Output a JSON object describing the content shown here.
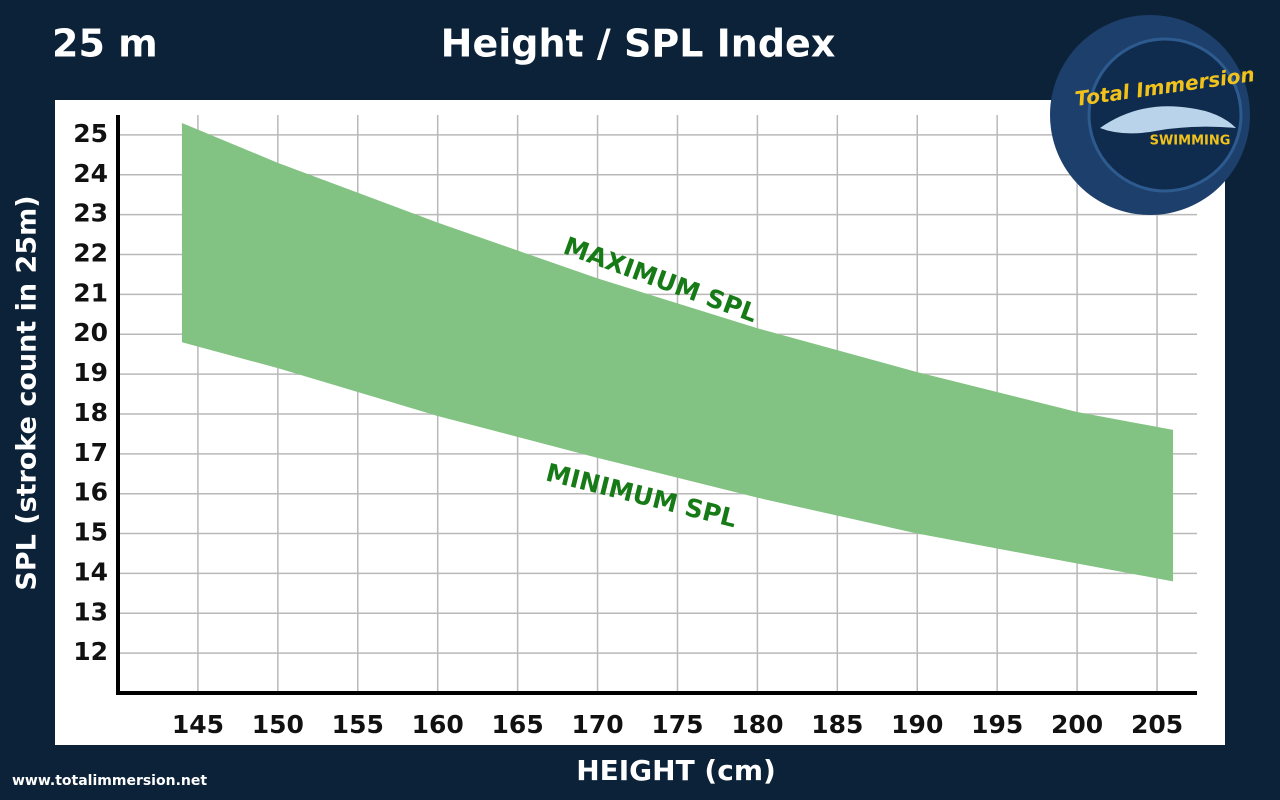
{
  "chart_data": {
    "type": "band",
    "corner_label": "25 m",
    "title": "Height / SPL Index",
    "x_label": "HEIGHT (cm)",
    "y_label": "SPL (stroke count in 25m)",
    "footer": "www.totalimmersion.net",
    "logo": {
      "title": "Total Immersion",
      "subtitle": "SWIMMING"
    },
    "x": [
      144,
      150,
      160,
      170,
      180,
      190,
      200,
      206
    ],
    "series": [
      {
        "name": "MAXIMUM SPL",
        "color": "#82c282",
        "values": [
          25.3,
          24.3,
          22.8,
          21.4,
          20.15,
          19.05,
          18.05,
          17.6
        ]
      },
      {
        "name": "MINIMUM SPL",
        "color": "#82c282",
        "values": [
          19.8,
          19.15,
          17.95,
          16.9,
          15.9,
          15.0,
          14.25,
          13.8
        ]
      }
    ],
    "label_color": "#167a16",
    "xlim": [
      140,
      207.5
    ],
    "ylim": [
      11,
      25.5
    ],
    "xticks": [
      145,
      150,
      155,
      160,
      165,
      170,
      175,
      180,
      185,
      190,
      195,
      200,
      205
    ],
    "yticks": [
      12,
      13,
      14,
      15,
      16,
      17,
      18,
      19,
      20,
      21,
      22,
      23,
      24,
      25
    ],
    "grid": true
  }
}
